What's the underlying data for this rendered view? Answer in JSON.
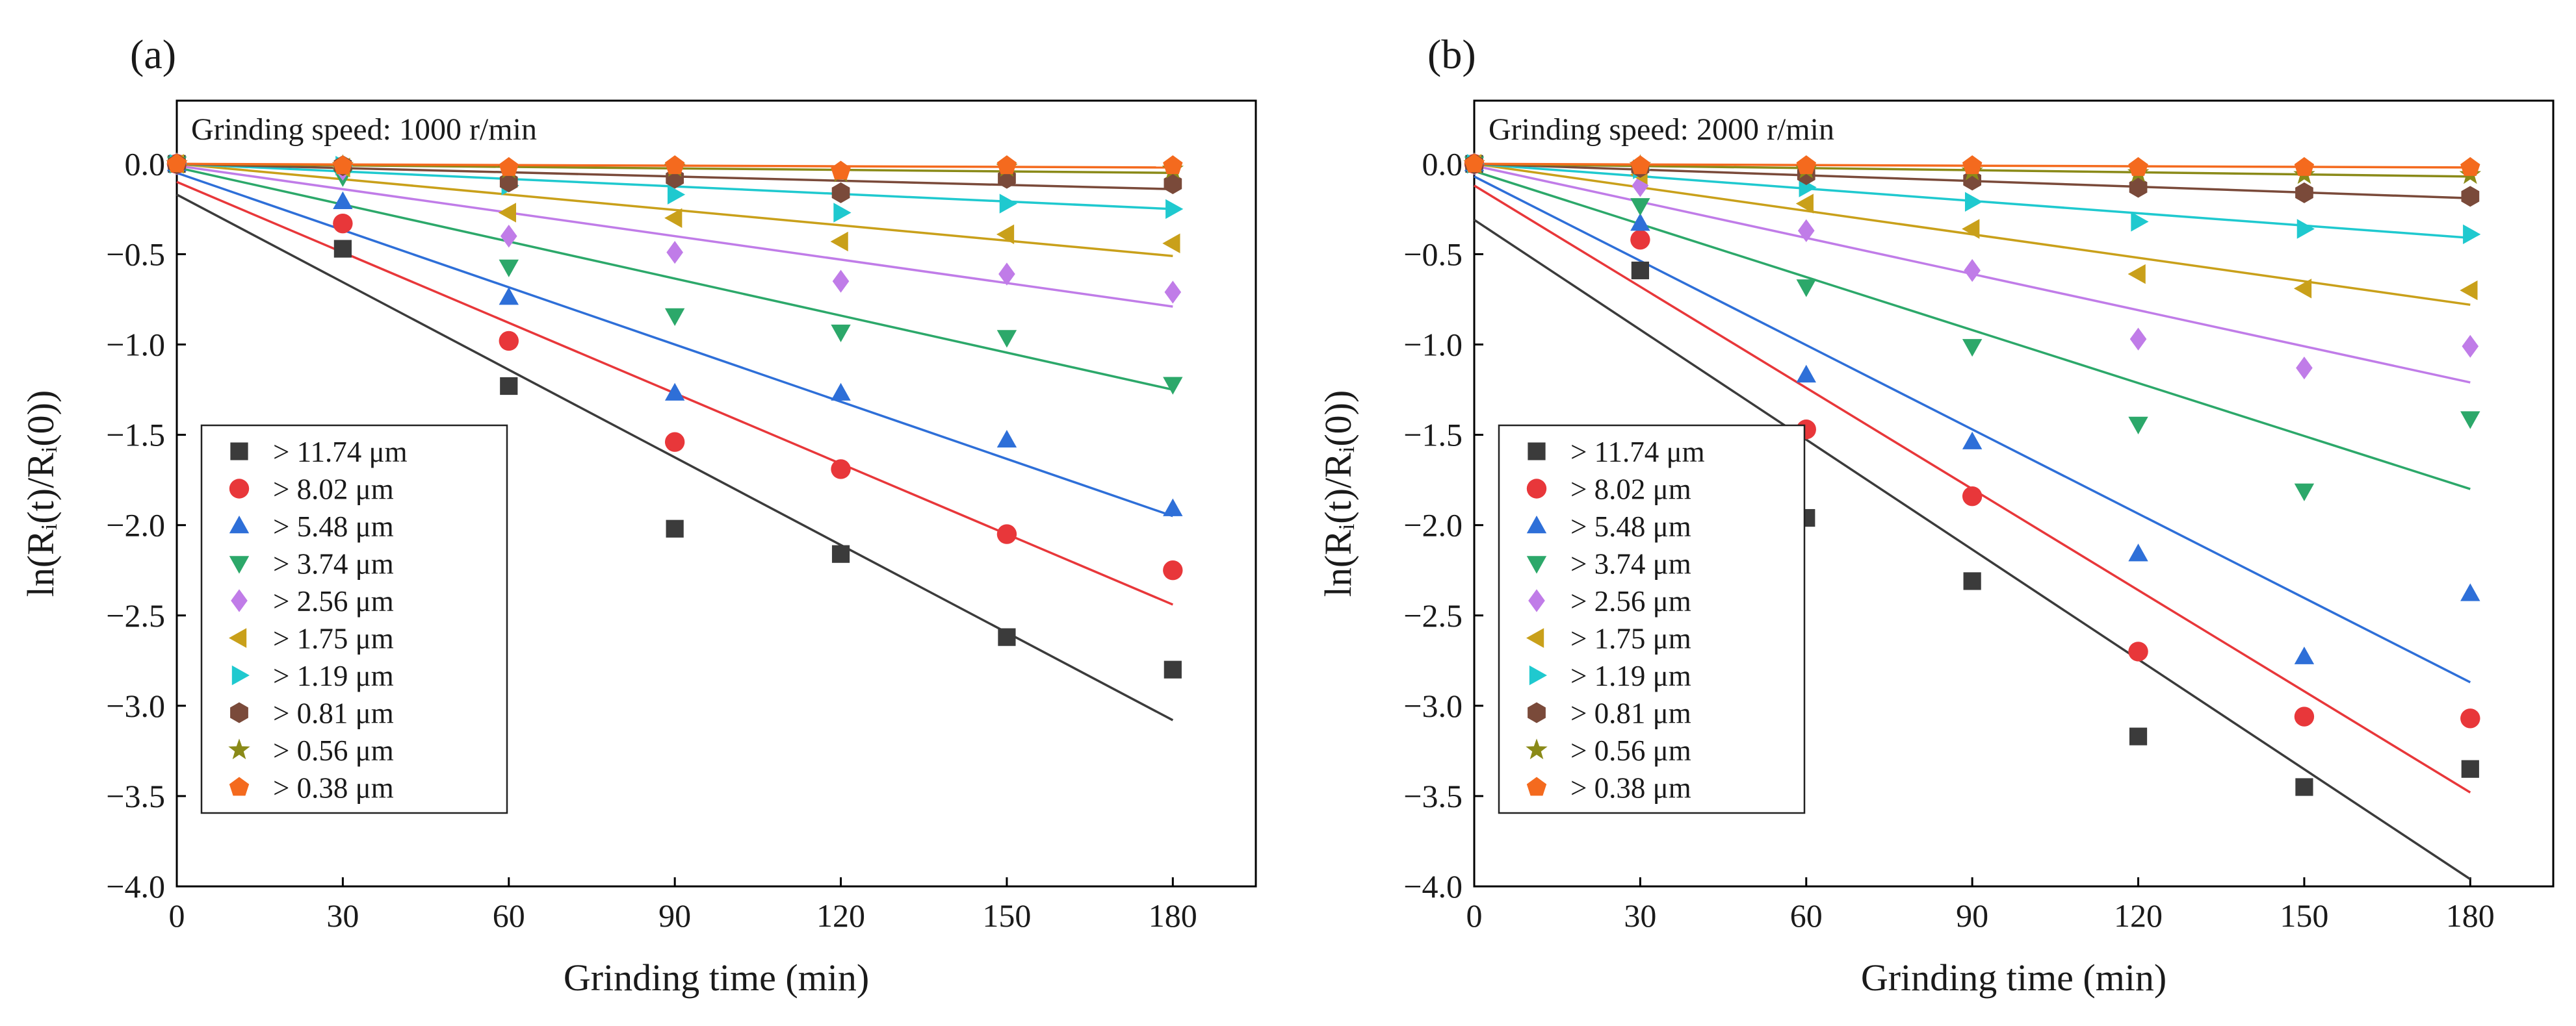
{
  "chart_data": [
    {
      "type": "scatter",
      "panel_label": "(a)",
      "annotation": "Grinding speed: 1000 r/min",
      "xlabel": "Grinding time (min)",
      "ylabel": "ln(Rᵢ(t)/Rᵢ(0))",
      "xlim": [
        0,
        195
      ],
      "ylim": [
        -4.0,
        0.35
      ],
      "x": [
        0,
        30,
        60,
        90,
        120,
        150,
        180
      ],
      "x_ticks": [
        0,
        30,
        60,
        90,
        120,
        150,
        180
      ],
      "y_ticks": [
        0.0,
        -0.5,
        -1.0,
        -1.5,
        -2.0,
        -2.5,
        -3.0,
        -3.5,
        -4.0
      ],
      "grid": false,
      "legend_position": "bottom-left",
      "series": [
        {
          "name": "> 11.74 μm",
          "marker": "square",
          "color": "#3b3b3b",
          "values": [
            0,
            -0.47,
            -1.23,
            -2.02,
            -2.16,
            -2.62,
            -2.8
          ],
          "fit": [
            -0.17,
            -3.08
          ]
        },
        {
          "name": "> 8.02 μm",
          "marker": "circle",
          "color": "#e8373a",
          "values": [
            0,
            -0.33,
            -0.98,
            -1.54,
            -1.69,
            -2.05,
            -2.25
          ],
          "fit": [
            -0.1,
            -2.44
          ]
        },
        {
          "name": "> 5.48 μm",
          "marker": "triangle-up",
          "color": "#2e6fd8",
          "values": [
            0,
            -0.21,
            -0.74,
            -1.27,
            -1.27,
            -1.53,
            -1.91
          ],
          "fit": [
            -0.05,
            -1.95
          ]
        },
        {
          "name": "> 3.74 μm",
          "marker": "triangle-down",
          "color": "#2ca86a",
          "values": [
            0,
            -0.07,
            -0.57,
            -0.84,
            -0.93,
            -0.96,
            -1.22
          ],
          "fit": [
            -0.02,
            -1.25
          ]
        },
        {
          "name": "> 2.56 μm",
          "marker": "diamond",
          "color": "#c07ce8",
          "values": [
            0,
            -0.03,
            -0.4,
            -0.49,
            -0.65,
            -0.61,
            -0.71
          ],
          "fit": [
            -0.01,
            -0.79
          ]
        },
        {
          "name": "> 1.75 μm",
          "marker": "triangle-left",
          "color": "#c9a01a",
          "values": [
            0,
            -0.02,
            -0.27,
            -0.3,
            -0.43,
            -0.39,
            -0.44
          ],
          "fit": [
            0.0,
            -0.51
          ]
        },
        {
          "name": "> 1.19 μm",
          "marker": "triangle-right",
          "color": "#1fc9cf",
          "values": [
            0,
            -0.01,
            -0.12,
            -0.17,
            -0.27,
            -0.22,
            -0.25
          ],
          "fit": [
            0.0,
            -0.25
          ]
        },
        {
          "name": "> 0.81 μm",
          "marker": "hexagon",
          "color": "#7a4a3a",
          "values": [
            0,
            -0.01,
            -0.1,
            -0.08,
            -0.16,
            -0.08,
            -0.11
          ],
          "fit": [
            0.0,
            -0.14
          ]
        },
        {
          "name": "> 0.56 μm",
          "marker": "star",
          "color": "#8a8a18",
          "values": [
            0,
            -0.01,
            -0.03,
            -0.02,
            -0.05,
            -0.02,
            -0.03
          ],
          "fit": [
            0.0,
            -0.05
          ]
        },
        {
          "name": "> 0.38 μm",
          "marker": "pentagon",
          "color": "#f46a1e",
          "values": [
            0,
            -0.01,
            -0.02,
            -0.01,
            -0.04,
            -0.01,
            -0.01
          ],
          "fit": [
            0.0,
            -0.02
          ]
        }
      ]
    },
    {
      "type": "scatter",
      "panel_label": "(b)",
      "annotation": "Grinding speed: 2000 r/min",
      "xlabel": "Grinding time (min)",
      "ylabel": "ln(Rᵢ(t)/Rᵢ(0))",
      "xlim": [
        0,
        195
      ],
      "ylim": [
        -4.0,
        0.35
      ],
      "x": [
        0,
        30,
        60,
        90,
        120,
        150,
        180
      ],
      "x_ticks": [
        0,
        30,
        60,
        90,
        120,
        150,
        180
      ],
      "y_ticks": [
        0.0,
        -0.5,
        -1.0,
        -1.5,
        -2.0,
        -2.5,
        -3.0,
        -3.5,
        -4.0
      ],
      "grid": false,
      "legend_position": "bottom-left",
      "series": [
        {
          "name": "> 11.74 μm",
          "marker": "square",
          "color": "#3b3b3b",
          "values": [
            0,
            -0.59,
            -1.96,
            -2.31,
            -3.17,
            -3.45,
            -3.35
          ],
          "fit": [
            -0.31,
            -3.96
          ]
        },
        {
          "name": "> 8.02 μm",
          "marker": "circle",
          "color": "#e8373a",
          "values": [
            0,
            -0.42,
            -1.47,
            -1.84,
            -2.7,
            -3.06,
            -3.07
          ],
          "fit": [
            -0.12,
            -3.48
          ]
        },
        {
          "name": "> 5.48 μm",
          "marker": "triangle-up",
          "color": "#2e6fd8",
          "values": [
            0,
            -0.33,
            -1.17,
            -1.54,
            -2.16,
            -2.73,
            -2.38
          ],
          "fit": [
            -0.07,
            -2.87
          ]
        },
        {
          "name": "> 3.74 μm",
          "marker": "triangle-down",
          "color": "#2ca86a",
          "values": [
            0,
            -0.23,
            -0.68,
            -1.01,
            -1.44,
            -1.81,
            -1.41
          ],
          "fit": [
            -0.04,
            -1.8
          ]
        },
        {
          "name": "> 2.56 μm",
          "marker": "diamond",
          "color": "#c07ce8",
          "values": [
            0,
            -0.12,
            -0.37,
            -0.59,
            -0.97,
            -1.13,
            -1.01
          ],
          "fit": [
            -0.01,
            -1.21
          ]
        },
        {
          "name": "> 1.75 μm",
          "marker": "triangle-left",
          "color": "#c9a01a",
          "values": [
            0,
            -0.06,
            -0.22,
            -0.36,
            -0.61,
            -0.69,
            -0.7
          ],
          "fit": [
            0.0,
            -0.78
          ]
        },
        {
          "name": "> 1.19 μm",
          "marker": "triangle-right",
          "color": "#1fc9cf",
          "values": [
            0,
            -0.03,
            -0.13,
            -0.21,
            -0.32,
            -0.36,
            -0.39
          ],
          "fit": [
            0.0,
            -0.41
          ]
        },
        {
          "name": "> 0.81 μm",
          "marker": "hexagon",
          "color": "#7a4a3a",
          "values": [
            0,
            -0.02,
            -0.06,
            -0.09,
            -0.13,
            -0.16,
            -0.18
          ],
          "fit": [
            0.0,
            -0.19
          ]
        },
        {
          "name": "> 0.56 μm",
          "marker": "star",
          "color": "#8a8a18",
          "values": [
            0,
            -0.01,
            -0.03,
            -0.04,
            -0.05,
            -0.06,
            -0.06
          ],
          "fit": [
            0.0,
            -0.07
          ]
        },
        {
          "name": "> 0.38 μm",
          "marker": "pentagon",
          "color": "#f46a1e",
          "values": [
            0,
            -0.01,
            -0.01,
            -0.01,
            -0.02,
            -0.02,
            -0.02
          ],
          "fit": [
            0.0,
            -0.02
          ]
        }
      ]
    }
  ]
}
